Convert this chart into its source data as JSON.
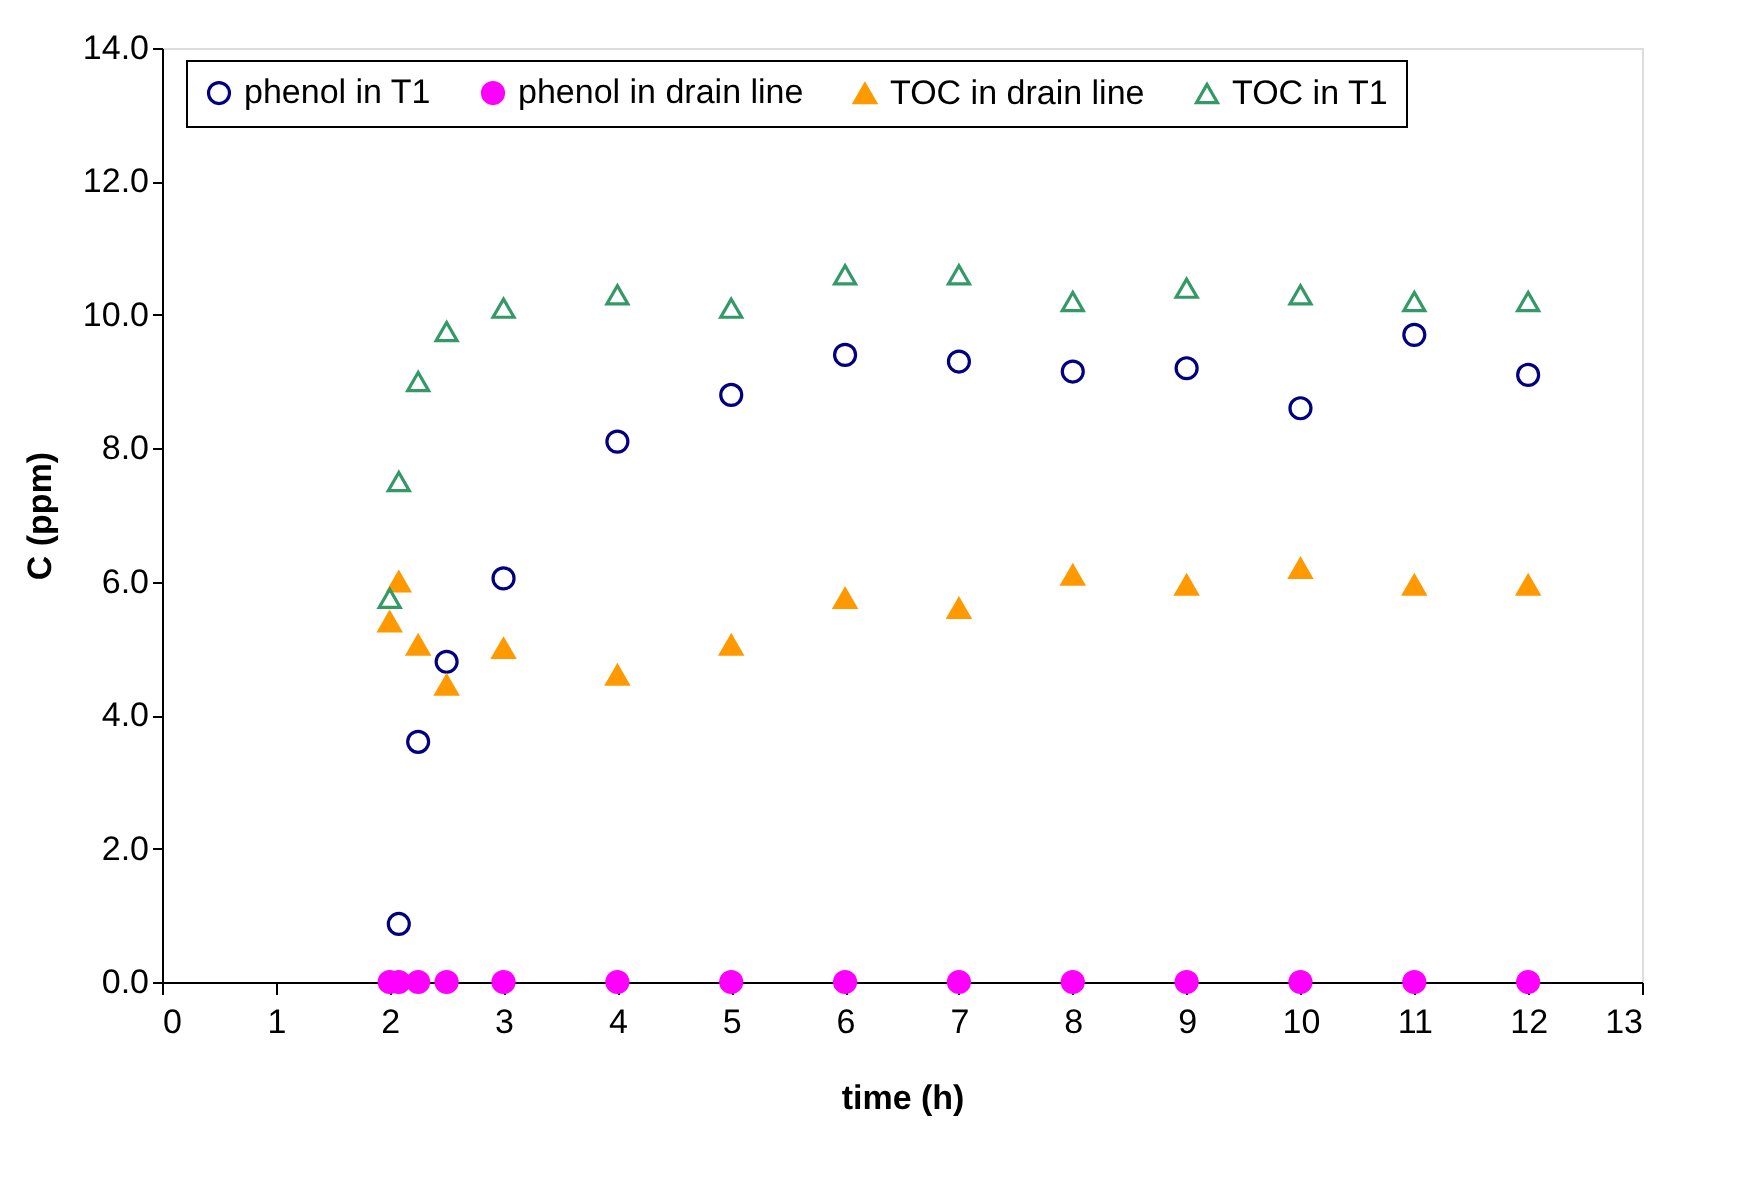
{
  "chart_data": {
    "type": "scatter",
    "xlabel": "time (h)",
    "ylabel": "C (ppm)",
    "xlim": [
      0,
      13
    ],
    "xticks": [
      0,
      1,
      2,
      3,
      4,
      5,
      6,
      7,
      8,
      9,
      10,
      11,
      12,
      13
    ],
    "ylim": [
      0,
      14
    ],
    "yticks": [
      {
        "value": 0,
        "label": "0.0"
      },
      {
        "value": 2,
        "label": "2.0"
      },
      {
        "value": 4,
        "label": "4.0"
      },
      {
        "value": 6,
        "label": "6.0"
      },
      {
        "value": 8,
        "label": "8.0"
      },
      {
        "value": 10,
        "label": "10.0"
      },
      {
        "value": 12,
        "label": "12.0"
      },
      {
        "value": 14,
        "label": "14.0"
      }
    ],
    "grid": false,
    "legend": "top",
    "series": [
      {
        "name": "phenol in T1",
        "color": "#000080",
        "marker": "circle",
        "x": [
          2.08,
          2.25,
          2.5,
          3,
          4,
          5,
          6,
          7,
          8,
          9,
          10,
          11,
          12
        ],
        "values": [
          0.87,
          3.6,
          4.8,
          6.05,
          8.1,
          8.8,
          9.4,
          9.3,
          9.15,
          9.2,
          8.6,
          9.7,
          9.1
        ]
      },
      {
        "name": "phenol in drain line",
        "color": "#ff00ff",
        "marker": "circle",
        "x": [
          2,
          2.08,
          2.25,
          2.5,
          3,
          4,
          5,
          6,
          7,
          8,
          9,
          10,
          11,
          12
        ],
        "values": [
          0,
          0,
          0,
          0,
          0,
          0,
          0,
          0,
          0,
          0,
          0,
          0,
          0,
          0
        ]
      },
      {
        "name": "TOC in drain line",
        "color": "#ff9900",
        "marker": "triangle",
        "x": [
          2,
          2.08,
          2.25,
          2.5,
          3,
          4,
          5,
          6,
          7,
          8,
          9,
          10,
          11,
          12
        ],
        "values": [
          5.4,
          6.0,
          5.05,
          4.45,
          5.0,
          4.6,
          5.05,
          5.75,
          5.6,
          6.1,
          5.95,
          6.2,
          5.95,
          5.95
        ]
      },
      {
        "name": "TOC in T1",
        "color": "#339966",
        "marker": "triangle",
        "x": [
          2,
          2.08,
          2.25,
          2.5,
          3,
          4,
          5,
          6,
          7,
          8,
          9,
          10,
          11,
          12
        ],
        "values": [
          5.75,
          7.5,
          9.0,
          9.75,
          10.1,
          10.3,
          10.1,
          10.6,
          10.6,
          10.2,
          10.4,
          10.3,
          10.2,
          10.2
        ]
      }
    ]
  }
}
